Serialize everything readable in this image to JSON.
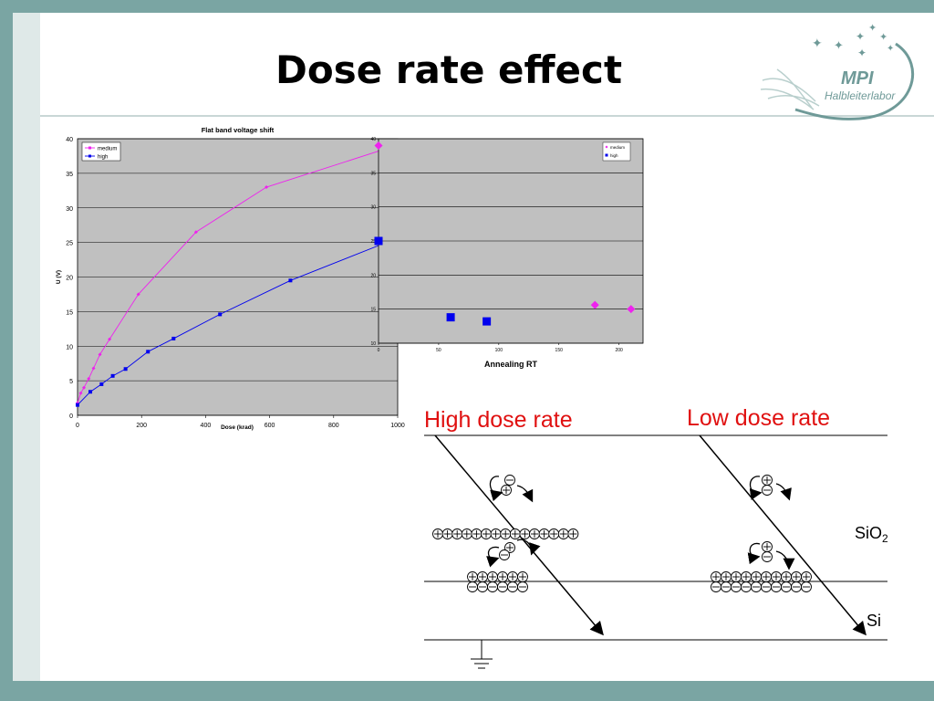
{
  "slide": {
    "title": "Dose rate effect",
    "logo": {
      "line1": "MPI",
      "line2": "Halbleiterlabor"
    }
  },
  "chart_data": [
    {
      "type": "line",
      "title": "Flat band voltage shift",
      "xlabel": "Dose (krad)",
      "ylabel": "U (V)",
      "xlim": [
        0,
        1000
      ],
      "ylim": [
        0,
        40
      ],
      "x_ticks": [
        "0",
        "200",
        "400",
        "600",
        "800",
        "1000"
      ],
      "y_ticks": [
        "0",
        "5",
        "10",
        "15",
        "20",
        "25",
        "30",
        "35",
        "40"
      ],
      "grid": true,
      "legend_position": "top-left",
      "series": [
        {
          "name": "medium",
          "color": "#ee22ee",
          "x": [
            0,
            10,
            20,
            35,
            50,
            70,
            100,
            190,
            370,
            590,
            980
          ],
          "y": [
            1.8,
            3.2,
            4.0,
            5.3,
            6.8,
            8.8,
            11.0,
            17.5,
            26.5,
            33.0,
            38.8
          ]
        },
        {
          "name": "high",
          "color": "#0000ee",
          "x": [
            0,
            40,
            75,
            110,
            150,
            220,
            300,
            445,
            665,
            965
          ],
          "y": [
            1.5,
            3.4,
            4.5,
            5.7,
            6.7,
            9.2,
            11.1,
            14.6,
            19.5,
            25.0
          ]
        }
      ]
    },
    {
      "type": "scatter",
      "title": "",
      "xlabel": "Annealing RT",
      "ylabel": "",
      "xlim": [
        0,
        220
      ],
      "ylim": [
        10,
        40
      ],
      "x_ticks": [
        "0",
        "50",
        "100",
        "150",
        "200"
      ],
      "y_ticks": [
        "10",
        "15",
        "20",
        "25",
        "30",
        "35",
        "40"
      ],
      "grid": true,
      "legend_position": "top-right",
      "series": [
        {
          "name": "medium",
          "color": "#ee22ee",
          "x": [
            0,
            180,
            210
          ],
          "y": [
            39.0,
            15.6,
            15.0
          ]
        },
        {
          "name": "high",
          "color": "#0000ee",
          "x": [
            0,
            60,
            90
          ],
          "y": [
            25.0,
            13.8,
            13.2
          ]
        }
      ]
    }
  ],
  "diagram": {
    "high_label": "High dose rate",
    "low_label": "Low dose rate",
    "sio2_label": "SiO",
    "sio2_sub": "2",
    "si_label": "Si"
  }
}
